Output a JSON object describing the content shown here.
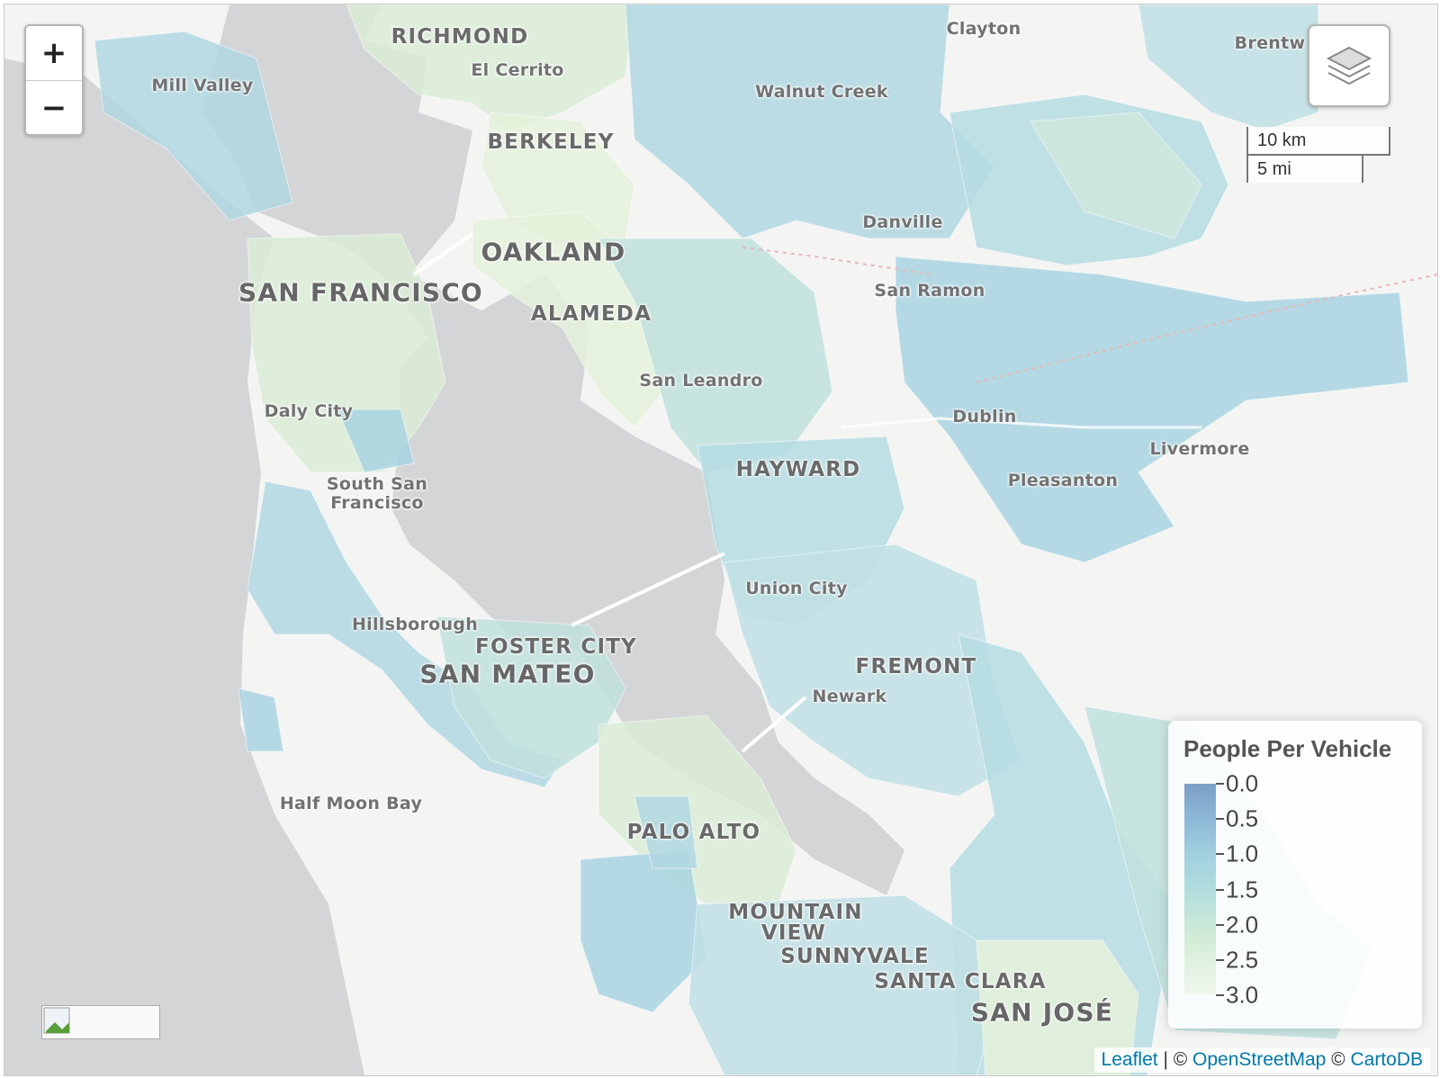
{
  "map": {
    "cities": [
      {
        "name": "RICHMOND",
        "size": "big"
      },
      {
        "name": "El Cerrito",
        "size": "small"
      },
      {
        "name": "Clayton",
        "size": "small"
      },
      {
        "name": "Brentw",
        "size": "small"
      },
      {
        "name": "Mill Valley",
        "size": "small"
      },
      {
        "name": "Walnut Creek",
        "size": "small"
      },
      {
        "name": "BERKELEY",
        "size": "big"
      },
      {
        "name": "Danville",
        "size": "small"
      },
      {
        "name": "OAKLAND",
        "size": "huge"
      },
      {
        "name": "SAN FRANCISCO",
        "size": "huge"
      },
      {
        "name": "San Ramon",
        "size": "small"
      },
      {
        "name": "ALAMEDA",
        "size": "big"
      },
      {
        "name": "San Leandro",
        "size": "small"
      },
      {
        "name": "Daly City",
        "size": "small"
      },
      {
        "name": "Dublin",
        "size": "small"
      },
      {
        "name": "Livermore",
        "size": "small"
      },
      {
        "name": "HAYWARD",
        "size": "big"
      },
      {
        "name": "Pleasanton",
        "size": "small"
      },
      {
        "name": "South San",
        "size": "small"
      },
      {
        "name": "Francisco",
        "size": "small"
      },
      {
        "name": "Union City",
        "size": "small"
      },
      {
        "name": "Hillsborough",
        "size": "small"
      },
      {
        "name": "FOSTER CITY",
        "size": "big"
      },
      {
        "name": "SAN MATEO",
        "size": "huge"
      },
      {
        "name": "FREMONT",
        "size": "big"
      },
      {
        "name": "Newark",
        "size": "small"
      },
      {
        "name": "Half Moon Bay",
        "size": "small"
      },
      {
        "name": "PALO ALTO",
        "size": "big"
      },
      {
        "name": "MOUNTAIN",
        "size": "big"
      },
      {
        "name": "VIEW",
        "size": "big"
      },
      {
        "name": "SUNNYVALE",
        "size": "big"
      },
      {
        "name": "SANTA CLARA",
        "size": "big"
      },
      {
        "name": "SAN JOSÉ",
        "size": "huge"
      }
    ],
    "choropleth_palette": [
      "#c0dfe4",
      "#b5dce2",
      "#a9d3e0",
      "#cce6dc",
      "#d9ecd6",
      "#e4f1da",
      "#bfe1dd",
      "#b1d7e2"
    ],
    "water_color": "#d4d5d7",
    "land_color": "#f4f4f3"
  },
  "controls": {
    "zoom_in": "+",
    "zoom_out": "−",
    "layers_icon": "layers-icon"
  },
  "scale": {
    "km": "10 km",
    "mi": "5 mi"
  },
  "legend": {
    "title": "People Per Vehicle",
    "ticks": [
      "0.0",
      "0.5",
      "1.0",
      "1.5",
      "2.0",
      "2.5",
      "3.0"
    ]
  },
  "attribution": {
    "leaflet": "Leaflet",
    "sep1": " | © ",
    "osm": "OpenStreetMap",
    "sep2": " © ",
    "carto": "CartoDB"
  }
}
